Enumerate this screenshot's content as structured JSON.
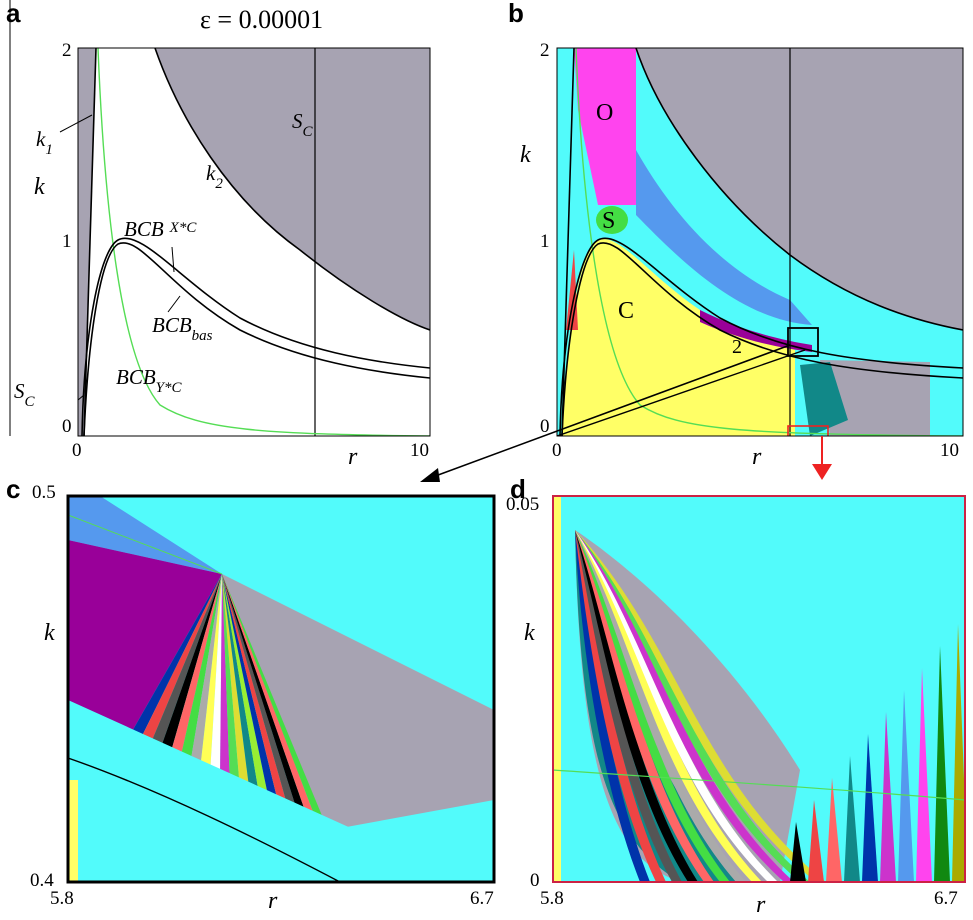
{
  "figure": {
    "epsilon_label": "ε = 0.00001"
  },
  "chart_data": [
    {
      "panel": "a",
      "type": "area",
      "xlabel": "r",
      "ylabel": "k",
      "xlim": [
        0,
        10
      ],
      "ylim": [
        0,
        2
      ],
      "x_ticks": [
        "0",
        "10"
      ],
      "y_ticks": [
        "0",
        "1",
        "2"
      ],
      "curves": [
        {
          "name": "k1",
          "label_main": "k",
          "label_sub": "1"
        },
        {
          "name": "k2",
          "label_main": "k",
          "label_sub": "2"
        },
        {
          "name": "S_C",
          "label_main": "S",
          "label_sub": "C"
        },
        {
          "name": "BCB_XC",
          "label_main": "BCB",
          "label_sub": "X*C"
        },
        {
          "name": "BCB_bas",
          "label_main": "BCB",
          "label_sub": "bas"
        },
        {
          "name": "BCB_YC",
          "label_main": "BCB",
          "label_sub": "Y*C"
        }
      ],
      "vertical_line_r": 7.4,
      "region_colors": {
        "infeasible": "#a7a3b2",
        "feasible": "#ffffff",
        "green_curve": "#55dd55"
      }
    },
    {
      "panel": "b",
      "type": "heatmap",
      "xlabel": "r",
      "ylabel": "k",
      "xlim": [
        0,
        10
      ],
      "ylim": [
        0,
        2
      ],
      "x_ticks": [
        "0",
        "10"
      ],
      "y_ticks": [
        "0",
        "1",
        "2"
      ],
      "region_labels": [
        "O",
        "S",
        "C",
        "2"
      ],
      "colors": {
        "cyan": "#52fbfb",
        "magenta": "#ff44ee",
        "yellow": "#ffff66",
        "gray": "#a7a3b2",
        "blue": "#5599ee",
        "green": "#44dd44",
        "purple": "#990099"
      }
    },
    {
      "panel": "c",
      "type": "heatmap",
      "xlabel": "r",
      "ylabel": "k",
      "xlim": [
        5.8,
        6.7
      ],
      "ylim": [
        0.4,
        0.5
      ],
      "x_ticks": [
        "5.8",
        "6.7"
      ],
      "y_ticks": [
        "0.4",
        "0.5"
      ]
    },
    {
      "panel": "d",
      "type": "heatmap",
      "xlabel": "r",
      "ylabel": "k",
      "xlim": [
        5.8,
        6.7
      ],
      "ylim": [
        0,
        0.05
      ],
      "x_ticks": [
        "5.8",
        "6.7"
      ],
      "y_ticks": [
        "0",
        "0.05"
      ]
    }
  ],
  "panels": {
    "a": {
      "label": "a"
    },
    "b": {
      "label": "b"
    },
    "c": {
      "label": "c"
    },
    "d": {
      "label": "d"
    }
  }
}
